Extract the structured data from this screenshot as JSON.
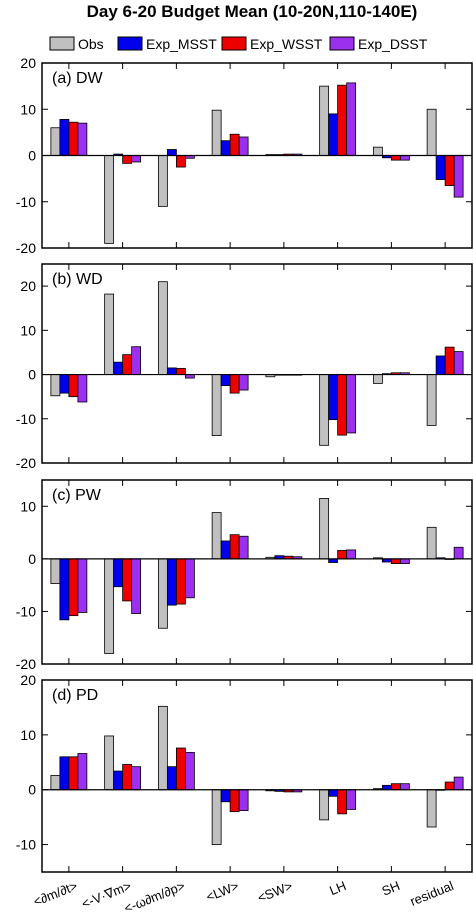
{
  "chart_data": {
    "type": "bar",
    "title": "Day 6-20 Budget Mean (10-20N,110-140E)",
    "categories": [
      "<∂m/∂t>",
      "<-V·∇m>",
      "<-ω∂m/∂p>",
      "<LW>",
      "<SW>",
      "LH",
      "SH",
      "residual"
    ],
    "legend": {
      "placement": "top",
      "entries": [
        {
          "name": "Obs",
          "color": "#c0c0c0"
        },
        {
          "name": "Exp_MSST",
          "color": "#0000ee"
        },
        {
          "name": "Exp_WSST",
          "color": "#ee0000"
        },
        {
          "name": "Exp_DSST",
          "color": "#9b30ee"
        }
      ]
    },
    "panels": [
      {
        "label": "(a) DW",
        "ylim": [
          -20,
          20
        ],
        "yticks": [
          20,
          10,
          0,
          -10,
          -20
        ],
        "series": [
          {
            "name": "Obs",
            "values": [
              6.0,
              -19.0,
              -11.0,
              9.8,
              0.2,
              15.0,
              1.8,
              10.0
            ]
          },
          {
            "name": "Exp_MSST",
            "values": [
              7.8,
              0.3,
              1.3,
              3.2,
              0.2,
              9.0,
              -0.5,
              -5.2
            ]
          },
          {
            "name": "Exp_WSST",
            "values": [
              7.2,
              -1.7,
              -2.5,
              4.6,
              0.3,
              15.2,
              -1.0,
              -6.5
            ]
          },
          {
            "name": "Exp_DSST",
            "values": [
              7.0,
              -1.4,
              -0.6,
              4.0,
              0.3,
              15.7,
              -1.0,
              -9.0
            ]
          }
        ]
      },
      {
        "label": "(b) WD",
        "ylim": [
          -20,
          25
        ],
        "yticks": [
          20,
          10,
          0,
          -10,
          -20
        ],
        "series": [
          {
            "name": "Obs",
            "values": [
              -4.8,
              18.2,
              21.0,
              -13.8,
              -0.5,
              -16.0,
              -2.0,
              -11.5
            ]
          },
          {
            "name": "Exp_MSST",
            "values": [
              -4.2,
              2.8,
              1.5,
              -2.5,
              0.0,
              -10.2,
              0.2,
              4.2
            ]
          },
          {
            "name": "Exp_WSST",
            "values": [
              -5.0,
              4.5,
              1.4,
              -4.2,
              0.0,
              -13.7,
              0.4,
              6.2
            ]
          },
          {
            "name": "Exp_DSST",
            "values": [
              -6.2,
              6.3,
              -0.8,
              -3.5,
              0.0,
              -13.2,
              0.4,
              5.2
            ]
          }
        ]
      },
      {
        "label": "(c) PW",
        "ylim": [
          -20,
          15
        ],
        "yticks": [
          10,
          0,
          -10,
          -20
        ],
        "series": [
          {
            "name": "Obs",
            "values": [
              -4.7,
              -18.0,
              -13.2,
              8.8,
              0.3,
              11.5,
              0.2,
              6.0
            ]
          },
          {
            "name": "Exp_MSST",
            "values": [
              -11.6,
              -5.3,
              -8.8,
              3.4,
              0.6,
              -0.7,
              -0.6,
              0.2
            ]
          },
          {
            "name": "Exp_WSST",
            "values": [
              -10.8,
              -8.0,
              -8.6,
              4.6,
              0.5,
              1.6,
              -0.9,
              0.0
            ]
          },
          {
            "name": "Exp_DSST",
            "values": [
              -10.2,
              -10.4,
              -7.4,
              4.3,
              0.4,
              1.7,
              -0.9,
              2.2
            ]
          }
        ]
      },
      {
        "label": "(d) PD",
        "ylim": [
          -15,
          20
        ],
        "yticks": [
          20,
          10,
          0,
          -10
        ],
        "series": [
          {
            "name": "Obs",
            "values": [
              2.6,
              9.8,
              15.2,
              -10.0,
              -0.2,
              -5.5,
              0.2,
              -6.8
            ]
          },
          {
            "name": "Exp_MSST",
            "values": [
              6.0,
              3.4,
              4.2,
              -2.2,
              -0.3,
              -1.2,
              0.8,
              0.0
            ]
          },
          {
            "name": "Exp_WSST",
            "values": [
              6.0,
              4.6,
              7.6,
              -4.0,
              -0.4,
              -4.4,
              1.1,
              1.4
            ]
          },
          {
            "name": "Exp_DSST",
            "values": [
              6.6,
              4.2,
              6.8,
              -3.8,
              -0.4,
              -3.6,
              1.1,
              2.3
            ]
          }
        ]
      }
    ],
    "grid": false
  }
}
